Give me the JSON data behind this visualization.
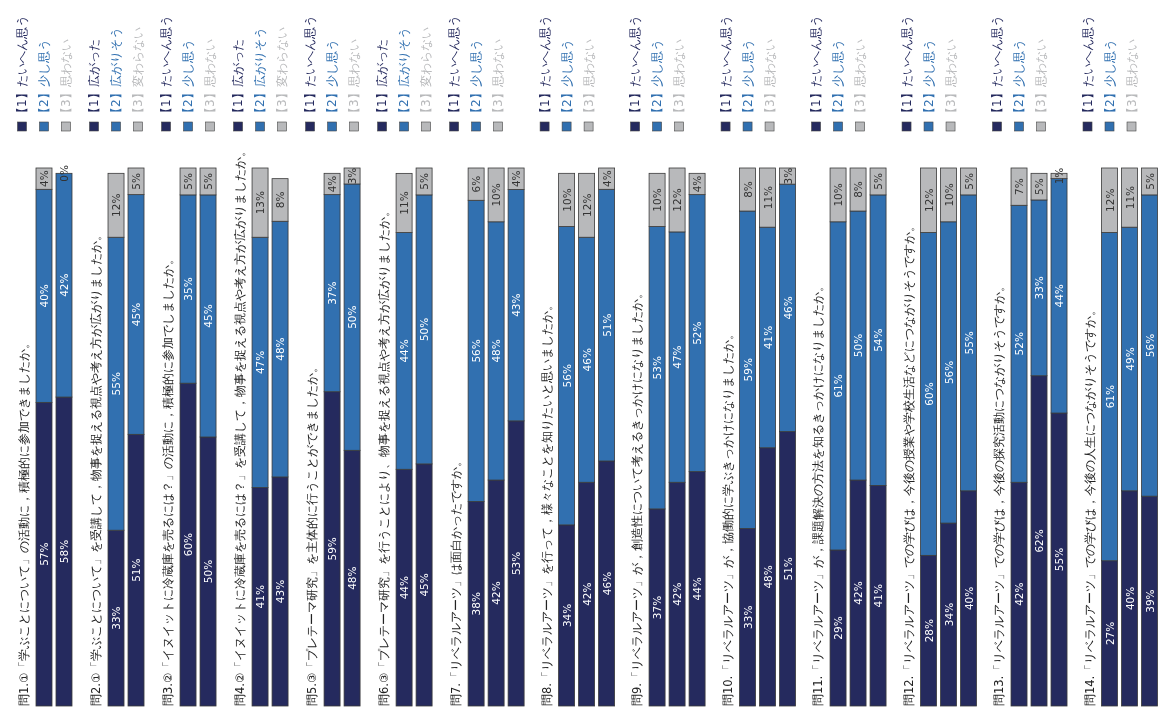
{
  "chart_data": [
    {
      "type": "bar",
      "stacked": true,
      "legend": "top",
      "title": "問1.①「学ぶことについて」の活動に，積極的に参加できましたか。",
      "categories": [
        null,
        null
      ],
      "series": [
        {
          "name": "【1】たいへん思う",
          "color": "#252a5e",
          "values": [
            57,
            58
          ],
          "value_labels": [
            "57%",
            "58%"
          ]
        },
        {
          "name": "【2】少し思う",
          "color": "#3170b0",
          "values": [
            40,
            42
          ],
          "value_labels": [
            "40%",
            "42%"
          ]
        },
        {
          "name": "【3】思わない",
          "color": "#b8b9bb",
          "values": [
            4,
            0
          ],
          "value_labels": [
            "4%",
            "0%"
          ]
        }
      ]
    },
    {
      "type": "bar",
      "stacked": true,
      "legend": "top",
      "title": "問2.①「学ぶことについて」を受講して，物事を捉える視点や考え方が広がりましたか。",
      "categories": [
        null,
        null
      ],
      "series": [
        {
          "name": "【1】広がった",
          "color": "#252a5e",
          "values": [
            33,
            51
          ],
          "value_labels": [
            "33%",
            "51%"
          ]
        },
        {
          "name": "【2】広がりそう",
          "color": "#3170b0",
          "values": [
            55,
            45
          ],
          "value_labels": [
            "55%",
            "45%"
          ]
        },
        {
          "name": "【3】変わらない",
          "color": "#b8b9bb",
          "values": [
            12,
            5
          ],
          "value_labels": [
            "12%",
            "5%"
          ]
        }
      ]
    },
    {
      "type": "bar",
      "stacked": true,
      "legend": "top",
      "title": "問3.②「イヌイットに冷蔵庫を売るには？」の活動に，積極的に参加でしましたか。",
      "categories": [
        null,
        null
      ],
      "series": [
        {
          "name": "【1】たいへん思う",
          "color": "#252a5e",
          "values": [
            60,
            50
          ],
          "value_labels": [
            "60%",
            "50%"
          ]
        },
        {
          "name": "【2】少し思う",
          "color": "#3170b0",
          "values": [
            35,
            45
          ],
          "value_labels": [
            "35%",
            "45%"
          ]
        },
        {
          "name": "【3】思わない",
          "color": "#b8b9bb",
          "values": [
            5,
            5
          ],
          "value_labels": [
            "5%",
            "5%"
          ]
        }
      ]
    },
    {
      "type": "bar",
      "stacked": true,
      "legend": "top",
      "title": "問4.②「イヌイットに冷蔵庫を売るには？」を受講して，物事を捉える視点や考え方が広がりましたか。",
      "categories": [
        null,
        null
      ],
      "series": [
        {
          "name": "【1】広がった",
          "color": "#252a5e",
          "values": [
            41,
            43
          ],
          "value_labels": [
            "41%",
            "43%"
          ]
        },
        {
          "name": "【2】広がりそう",
          "color": "#3170b0",
          "values": [
            47,
            48
          ],
          "value_labels": [
            "47%",
            "48%"
          ]
        },
        {
          "name": "【3】変わらない",
          "color": "#b8b9bb",
          "values": [
            13,
            8
          ],
          "value_labels": [
            "13%",
            "8%"
          ]
        }
      ]
    },
    {
      "type": "bar",
      "stacked": true,
      "legend": "top",
      "title": "問5.③「プレテーマ研究」を主体的に行うことができましたか。",
      "categories": [
        null,
        null
      ],
      "series": [
        {
          "name": "【1】たいへん思う",
          "color": "#252a5e",
          "values": [
            59,
            48
          ],
          "value_labels": [
            "59%",
            "48%"
          ]
        },
        {
          "name": "【2】少し思う",
          "color": "#3170b0",
          "values": [
            37,
            50
          ],
          "value_labels": [
            "37%",
            "50%"
          ]
        },
        {
          "name": "【3】思わない",
          "color": "#b8b9bb",
          "values": [
            4,
            3
          ],
          "value_labels": [
            "4%",
            "3%"
          ]
        }
      ]
    },
    {
      "type": "bar",
      "stacked": true,
      "legend": "top",
      "title": "問6.③「プレテーマ研究」を行うことにより、物事を捉える視点や考え方が広がりましたか。",
      "categories": [
        null,
        null
      ],
      "series": [
        {
          "name": "【1】広がった",
          "color": "#252a5e",
          "values": [
            44,
            45
          ],
          "value_labels": [
            "44%",
            "45%"
          ]
        },
        {
          "name": "【2】広がりそう",
          "color": "#3170b0",
          "values": [
            44,
            50
          ],
          "value_labels": [
            "44%",
            "50%"
          ]
        },
        {
          "name": "【3】変わらない",
          "color": "#b8b9bb",
          "values": [
            11,
            5
          ],
          "value_labels": [
            "11%",
            "5%"
          ]
        }
      ]
    },
    {
      "type": "bar",
      "stacked": true,
      "legend": "top",
      "title": "問7.「リベラルアーツ」は面白かったですか。",
      "categories": [
        null,
        null,
        null
      ],
      "series": [
        {
          "name": "【1】たいへん思う",
          "color": "#252a5e",
          "values": [
            38,
            42,
            53
          ],
          "value_labels": [
            "38%",
            "42%",
            "53%"
          ]
        },
        {
          "name": "【2】少し思う",
          "color": "#3170b0",
          "values": [
            56,
            48,
            43
          ],
          "value_labels": [
            "56%",
            "48%",
            "43%"
          ]
        },
        {
          "name": "【3】思わない",
          "color": "#b8b9bb",
          "values": [
            6,
            10,
            4
          ],
          "value_labels": [
            "6%",
            "10%",
            "4%"
          ]
        }
      ]
    },
    {
      "type": "bar",
      "stacked": true,
      "legend": "top",
      "title": "問8.「リベラルアーツ」を行って，様々なことを知りたいと思いましたか。",
      "categories": [
        null,
        null,
        null
      ],
      "series": [
        {
          "name": "【1】たいへん思う",
          "color": "#252a5e",
          "values": [
            34,
            42,
            46
          ],
          "value_labels": [
            "34%",
            "42%",
            "46%"
          ]
        },
        {
          "name": "【2】少し思う",
          "color": "#3170b0",
          "values": [
            56,
            46,
            51
          ],
          "value_labels": [
            "56%",
            "46%",
            "51%"
          ]
        },
        {
          "name": "【3】思わない",
          "color": "#b8b9bb",
          "values": [
            10,
            12,
            4
          ],
          "value_labels": [
            "10%",
            "12%",
            "4%"
          ]
        }
      ]
    },
    {
      "type": "bar",
      "stacked": true,
      "legend": "top",
      "title": "問9.「リベラルアーツ」が，創造性について考えるきっかけになりましたか。",
      "categories": [
        null,
        null,
        null
      ],
      "series": [
        {
          "name": "【1】たいへん思う",
          "color": "#252a5e",
          "values": [
            37,
            42,
            44
          ],
          "value_labels": [
            "37%",
            "42%",
            "44%"
          ]
        },
        {
          "name": "【2】少し思う",
          "color": "#3170b0",
          "values": [
            53,
            47,
            52
          ],
          "value_labels": [
            "53%",
            "47%",
            "52%"
          ]
        },
        {
          "name": "【3】思わない",
          "color": "#b8b9bb",
          "values": [
            10,
            12,
            4
          ],
          "value_labels": [
            "10%",
            "12%",
            "4%"
          ]
        }
      ]
    },
    {
      "type": "bar",
      "stacked": true,
      "legend": "top",
      "title": "問10.「リベラルアーツ」が，協働的に学ぶきっかけになりましたか。",
      "categories": [
        null,
        null,
        null
      ],
      "series": [
        {
          "name": "【1】たいへん思う",
          "color": "#252a5e",
          "values": [
            33,
            48,
            51
          ],
          "value_labels": [
            "33%",
            "48%",
            "51%"
          ]
        },
        {
          "name": "【2】少し思う",
          "color": "#3170b0",
          "values": [
            59,
            41,
            46
          ],
          "value_labels": [
            "59%",
            "41%",
            "46%"
          ]
        },
        {
          "name": "【3】思わない",
          "color": "#b8b9bb",
          "values": [
            8,
            11,
            3
          ],
          "value_labels": [
            "8%",
            "11%",
            "3%"
          ]
        }
      ]
    },
    {
      "type": "bar",
      "stacked": true,
      "legend": "top",
      "title": "問11.「リベラルアーツ」が，課題解決の方法を知るきっかけになりましたか。",
      "categories": [
        null,
        null,
        null
      ],
      "series": [
        {
          "name": "【1】たいへん思う",
          "color": "#252a5e",
          "values": [
            29,
            42,
            41
          ],
          "value_labels": [
            "29%",
            "42%",
            "41%"
          ]
        },
        {
          "name": "【2】少し思う",
          "color": "#3170b0",
          "values": [
            61,
            50,
            54
          ],
          "value_labels": [
            "61%",
            "50%",
            "54%"
          ]
        },
        {
          "name": "【3】思わない",
          "color": "#b8b9bb",
          "values": [
            10,
            8,
            5
          ],
          "value_labels": [
            "10%",
            "8%",
            "5%"
          ]
        }
      ]
    },
    {
      "type": "bar",
      "stacked": true,
      "legend": "top",
      "title": "問12.「リベラルアーツ」での学びは，今後の授業や学校生活などにつながりそうですか。",
      "categories": [
        null,
        null,
        null
      ],
      "series": [
        {
          "name": "【1】たいへん思う",
          "color": "#252a5e",
          "values": [
            28,
            34,
            40
          ],
          "value_labels": [
            "28%",
            "34%",
            "40%"
          ]
        },
        {
          "name": "【2】少し思う",
          "color": "#3170b0",
          "values": [
            60,
            56,
            55
          ],
          "value_labels": [
            "60%",
            "56%",
            "55%"
          ]
        },
        {
          "name": "【3】思わない",
          "color": "#b8b9bb",
          "values": [
            12,
            10,
            5
          ],
          "value_labels": [
            "12%",
            "10%",
            "5%"
          ]
        }
      ]
    },
    {
      "type": "bar",
      "stacked": true,
      "legend": "top",
      "title": "問13.「リベラルアーツ」での学びは，今後の探究活動につながりそうですか。",
      "categories": [
        null,
        null,
        null
      ],
      "series": [
        {
          "name": "【1】たいへん思う",
          "color": "#252a5e",
          "values": [
            42,
            62,
            55
          ],
          "value_labels": [
            "42%",
            "62%",
            "55%"
          ]
        },
        {
          "name": "【2】少し思う",
          "color": "#3170b0",
          "values": [
            52,
            33,
            44
          ],
          "value_labels": [
            "52%",
            "33%",
            "44%"
          ]
        },
        {
          "name": "【3】思わない",
          "color": "#b8b9bb",
          "values": [
            7,
            5,
            1
          ],
          "value_labels": [
            "7%",
            "5%",
            "1%"
          ]
        }
      ]
    },
    {
      "type": "bar",
      "stacked": true,
      "legend": "top",
      "title": "問14.「リベラルアーツ」での学びは，今後の人生につながりそうですか。",
      "categories": [
        null,
        null,
        null
      ],
      "series": [
        {
          "name": "【1】たいへん思う",
          "color": "#252a5e",
          "values": [
            27,
            40,
            39
          ],
          "value_labels": [
            "27%",
            "40%",
            "39%"
          ]
        },
        {
          "name": "【2】少し思う",
          "color": "#3170b0",
          "values": [
            61,
            49,
            56
          ],
          "value_labels": [
            "61%",
            "49%",
            "56%"
          ]
        },
        {
          "name": "【3】思わない",
          "color": "#b8b9bb",
          "values": [
            12,
            11,
            5
          ],
          "value_labels": [
            "12%",
            "11%",
            "5%"
          ]
        }
      ]
    }
  ]
}
